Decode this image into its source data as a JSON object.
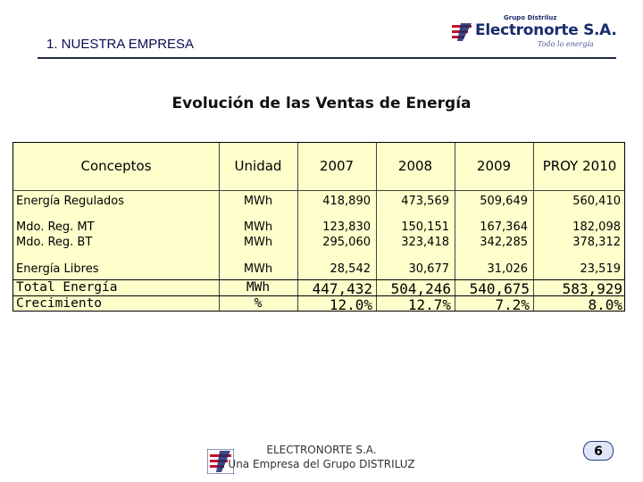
{
  "header": {
    "section_title": "1.   NUESTRA EMPRESA",
    "logo": {
      "group": "Grupo Distriluz",
      "name": "Electronorte S.A.",
      "slogan": "Todo lo energía"
    }
  },
  "title": "Evolución de las Ventas de Energía",
  "table": {
    "columns": [
      "Conceptos",
      "Unidad",
      "2007",
      "2008",
      "2009",
      "PROY 2010"
    ],
    "rows": [
      {
        "concept": "Energía Regulados",
        "unit": "MWh",
        "values": [
          "418,890",
          "473,569",
          "509,649",
          "560,410"
        ]
      },
      {
        "concept": "Mdo. Reg. MT",
        "unit": "MWh",
        "values": [
          "123,830",
          "150,151",
          "167,364",
          "182,098"
        ]
      },
      {
        "concept": "Mdo. Reg. BT",
        "unit": "MWh",
        "values": [
          "295,060",
          "323,418",
          "342,285",
          "378,312"
        ]
      },
      {
        "concept": "Energía Libres",
        "unit": "MWh",
        "values": [
          "28,542",
          "30,677",
          "31,026",
          "23,519"
        ]
      }
    ],
    "total": {
      "concept": "Total Energía",
      "unit": "MWh",
      "values": [
        "447,432",
        "504,246",
        "540,675",
        "583,929"
      ]
    },
    "growth": {
      "concept": "Crecimiento",
      "unit": "%",
      "values": [
        "12.0%",
        "12.7%",
        "7.2%",
        "8.0%"
      ]
    }
  },
  "footer": {
    "line1": "ELECTRONORTE S.A.",
    "line2": "Una Empresa del Grupo DISTRILUZ"
  },
  "page_number": "6"
}
